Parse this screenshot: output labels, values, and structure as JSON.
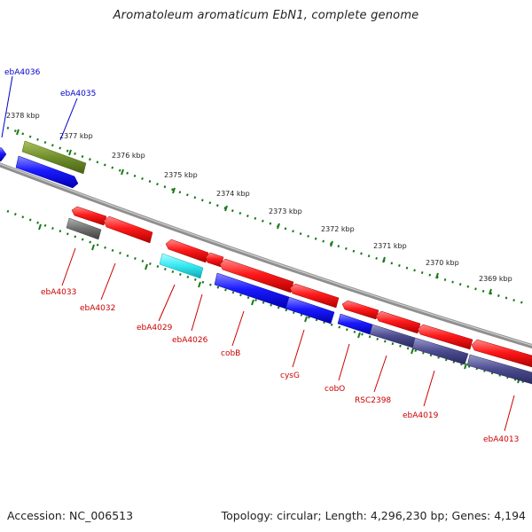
{
  "title": "Aromatoleum aromaticum EbN1, complete genome",
  "footer": {
    "accession": "Accession: NC_006513",
    "stats": "Topology: circular; Length: 4,296,230 bp; Genes: 4,194"
  },
  "colors": {
    "forward_gene": "#1a1aff",
    "reverse_gene": "#ff1a1a",
    "label_forward": "#0000cc",
    "label_reverse": "#cc0000",
    "ruler_tick": "#1a7a1a",
    "backbone": "#8f8f8f",
    "olive": "#6f8f2a",
    "cyan": "#33e8f0",
    "gray_gene": "#707070",
    "purple_gene": "#4b4b8f"
  },
  "ruler": {
    "unit": "kbp",
    "outer_labels": [
      "2378 kbp",
      "2377 kbp",
      "2376 kbp",
      "2375 kbp",
      "2374 kbp"
    ],
    "inner_labels": [
      "2373 kbp",
      "2372 kbp",
      "2371 kbp",
      "2370 kbp",
      "2369 kbp"
    ]
  },
  "gene_labels": [
    {
      "name": "ebA4036",
      "strand": "forward"
    },
    {
      "name": "ebA4035",
      "strand": "forward"
    },
    {
      "name": "ebA4033",
      "strand": "reverse"
    },
    {
      "name": "ebA4032",
      "strand": "reverse"
    },
    {
      "name": "ebA4029",
      "strand": "reverse"
    },
    {
      "name": "ebA4026",
      "strand": "reverse"
    },
    {
      "name": "cobB",
      "strand": "reverse"
    },
    {
      "name": "cysG",
      "strand": "reverse"
    },
    {
      "name": "cobO",
      "strand": "reverse"
    },
    {
      "name": "RSC2398",
      "strand": "reverse"
    },
    {
      "name": "ebA4019",
      "strand": "reverse"
    },
    {
      "name": "ebA4013",
      "strand": "reverse"
    }
  ]
}
